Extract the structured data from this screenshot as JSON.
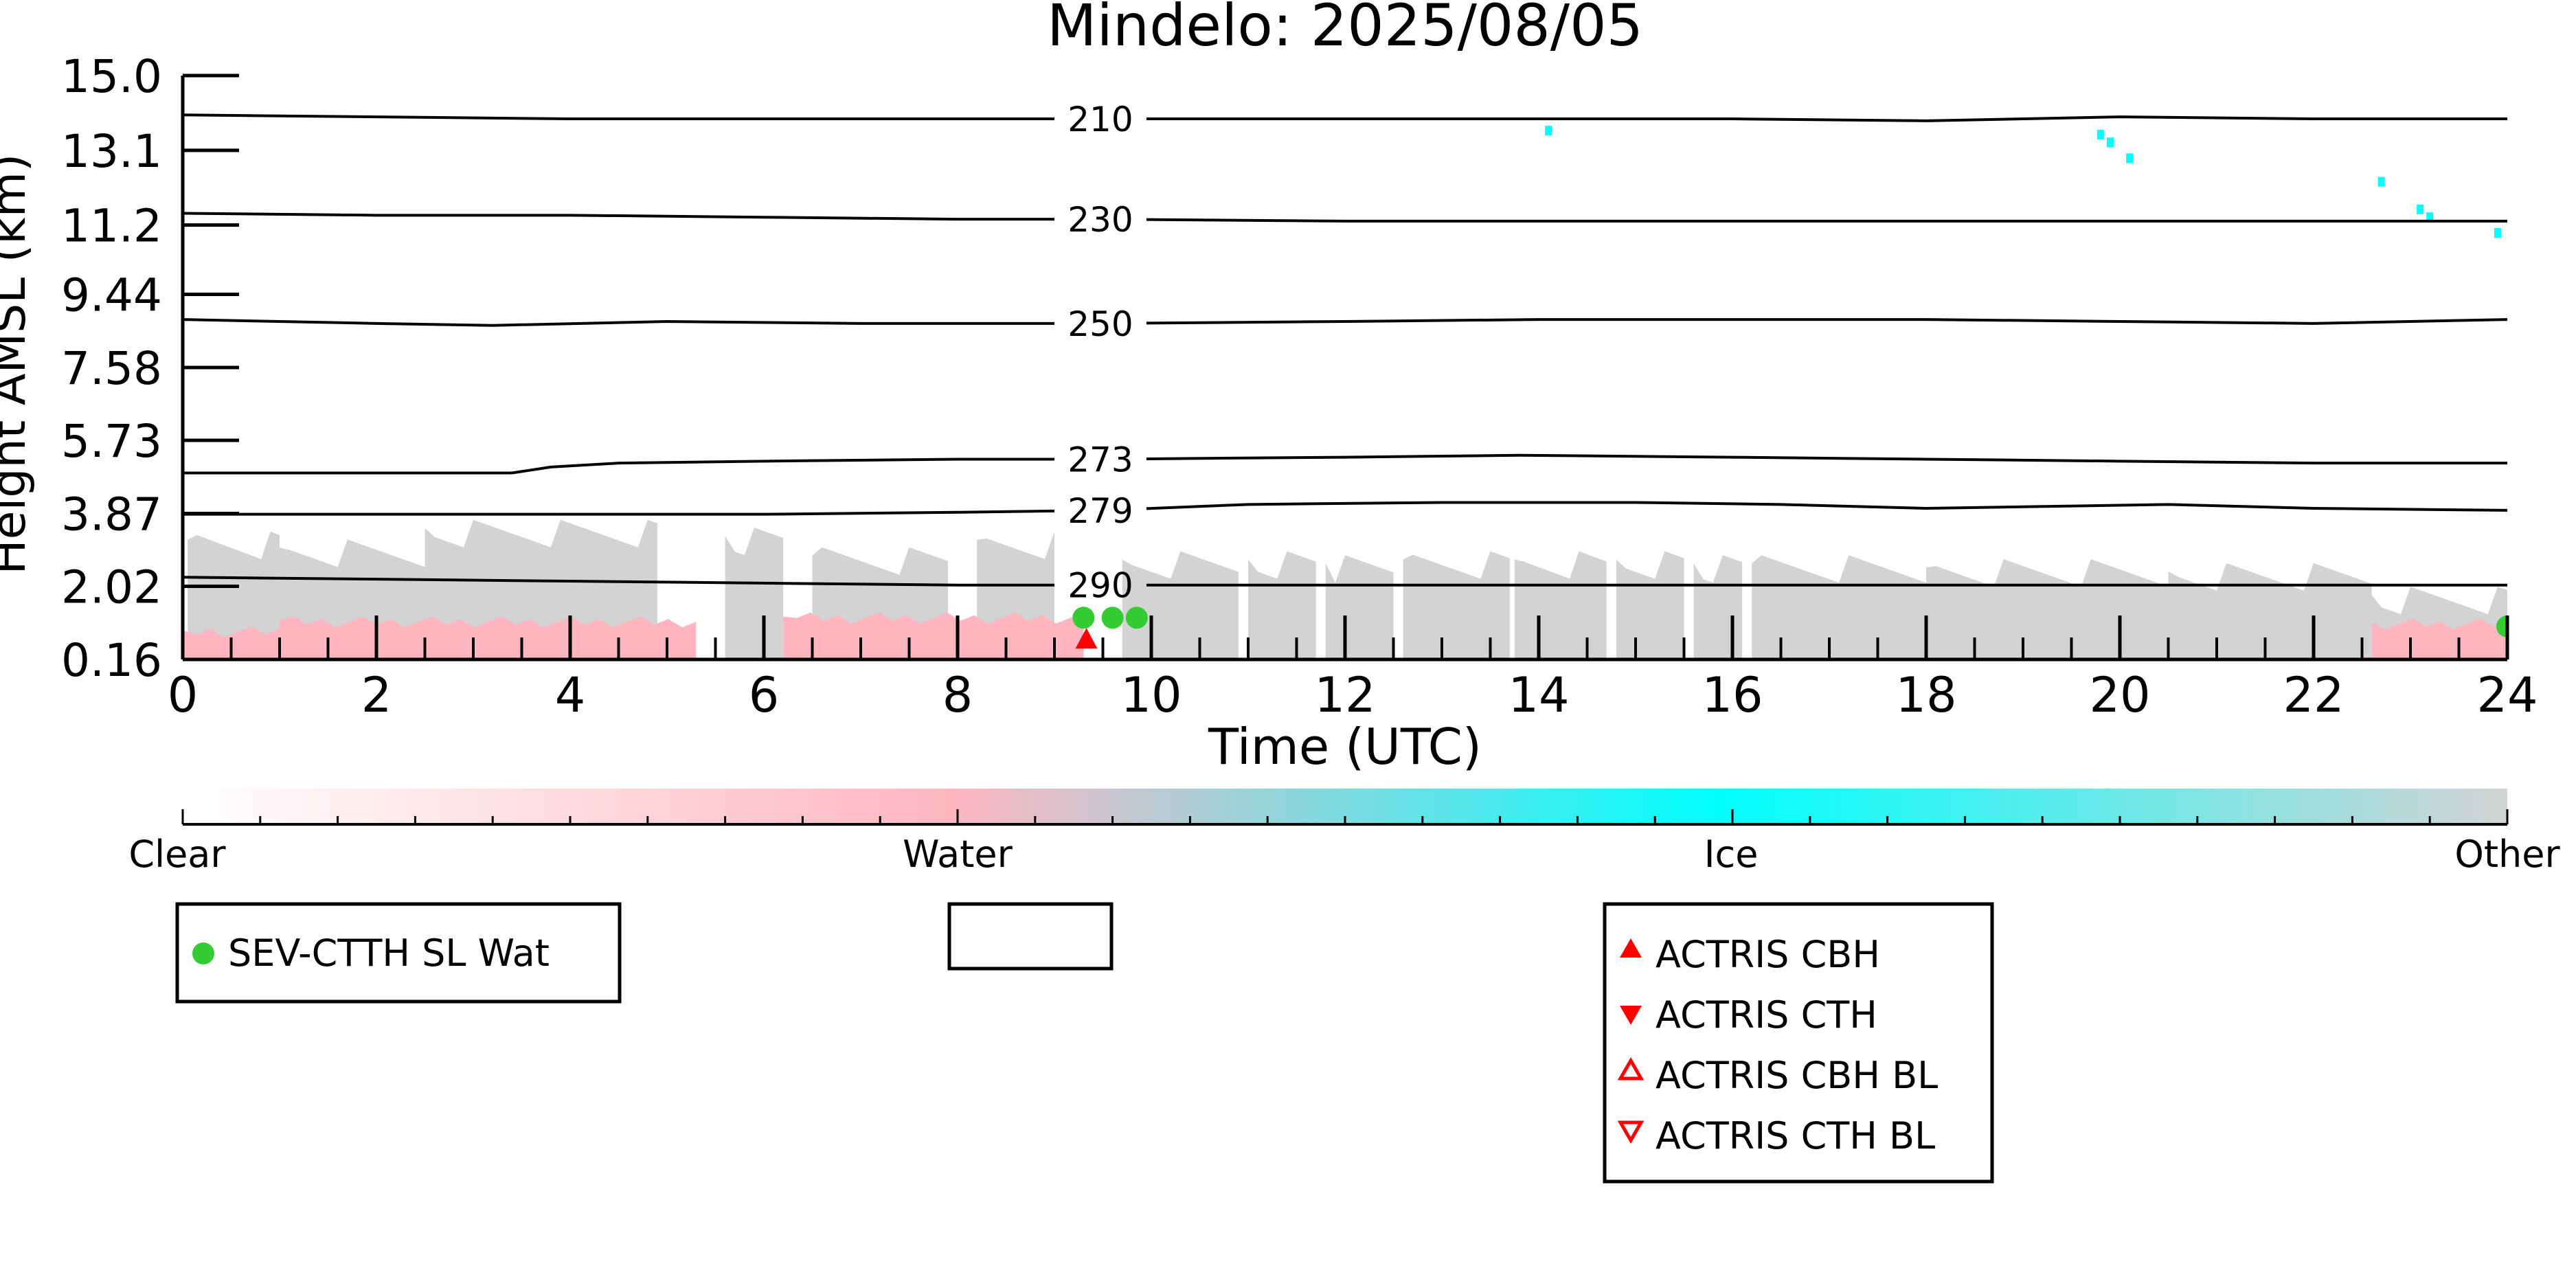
{
  "chart_data": {
    "type": "heatmap",
    "title": "Mindelo: 2025/08/05",
    "xlabel": "Time (UTC)",
    "ylabel": "Height AMSL (km)",
    "xlim": [
      0,
      24
    ],
    "ylim": [
      0.16,
      15.0
    ],
    "x_ticks": [
      "0",
      "2",
      "4",
      "6",
      "8",
      "10",
      "12",
      "14",
      "16",
      "18",
      "20",
      "22",
      "24"
    ],
    "y_ticks": [
      "15.0",
      "13.1",
      "11.2",
      "9.44",
      "7.58",
      "5.73",
      "3.87",
      "2.02",
      "0.16"
    ],
    "y_tick_values": [
      15.0,
      13.1,
      11.2,
      9.44,
      7.58,
      5.73,
      3.87,
      2.02,
      0.16
    ],
    "colorbar": {
      "labels": [
        "Clear",
        "Water",
        "Ice",
        "Other"
      ],
      "colors": [
        "#ffffff",
        "#ffb6c1",
        "#00ffff",
        "#d3d3d3"
      ]
    },
    "contours": [
      {
        "label": "210",
        "x": [
          0,
          2,
          4,
          6,
          8,
          9.5,
          12,
          14,
          16,
          18,
          20,
          22,
          24
        ],
        "y": [
          14.0,
          13.95,
          13.9,
          13.9,
          13.9,
          13.9,
          13.9,
          13.9,
          13.9,
          13.85,
          13.95,
          13.9,
          13.9
        ]
      },
      {
        "label": "230",
        "x": [
          0,
          2,
          4,
          6,
          8,
          9.5,
          12,
          14,
          16,
          18,
          20,
          22,
          24
        ],
        "y": [
          11.5,
          11.45,
          11.45,
          11.4,
          11.35,
          11.35,
          11.3,
          11.3,
          11.3,
          11.3,
          11.3,
          11.3,
          11.3
        ]
      },
      {
        "label": "250",
        "x": [
          0,
          2,
          3.2,
          5,
          7,
          9.5,
          12,
          14,
          16,
          18,
          20,
          22,
          24
        ],
        "y": [
          8.8,
          8.7,
          8.65,
          8.75,
          8.7,
          8.7,
          8.75,
          8.8,
          8.8,
          8.8,
          8.75,
          8.7,
          8.8
        ]
      },
      {
        "label": "273",
        "x": [
          0,
          2,
          3.4,
          3.8,
          4.5,
          6,
          8,
          9.5,
          12,
          13.8,
          16,
          18,
          20,
          22,
          24
        ],
        "y": [
          4.9,
          4.9,
          4.9,
          5.05,
          5.15,
          5.2,
          5.25,
          5.25,
          5.3,
          5.35,
          5.3,
          5.25,
          5.2,
          5.15,
          5.15
        ]
      },
      {
        "label": "279",
        "x": [
          0,
          2,
          4,
          6,
          8,
          9.5,
          11,
          13,
          15,
          16.5,
          18,
          20.5,
          22,
          24
        ],
        "y": [
          3.85,
          3.85,
          3.85,
          3.85,
          3.9,
          3.95,
          4.1,
          4.15,
          4.15,
          4.1,
          4.0,
          4.1,
          4.0,
          3.95
        ]
      },
      {
        "label": "290",
        "x": [
          0,
          2,
          4,
          6,
          8,
          9.5,
          12,
          14,
          16,
          18,
          20,
          22,
          24
        ],
        "y": [
          2.25,
          2.2,
          2.15,
          2.1,
          2.05,
          2.05,
          2.05,
          2.05,
          2.05,
          2.05,
          2.05,
          2.05,
          2.05
        ]
      }
    ],
    "other_blocks": [
      {
        "x0": 0.05,
        "x1": 1.0,
        "top": 3.2
      },
      {
        "x0": 1.0,
        "x1": 2.5,
        "top": 3.0
      },
      {
        "x0": 2.5,
        "x1": 4.9,
        "top": 3.5
      },
      {
        "x0": 5.6,
        "x1": 6.2,
        "top": 3.3
      },
      {
        "x0": 6.5,
        "x1": 7.9,
        "top": 2.8
      },
      {
        "x0": 8.2,
        "x1": 9.0,
        "top": 3.2
      },
      {
        "x0": 9.7,
        "x1": 10.9,
        "top": 2.7
      },
      {
        "x0": 11.0,
        "x1": 11.7,
        "top": 2.7
      },
      {
        "x0": 11.8,
        "x1": 12.5,
        "top": 2.6
      },
      {
        "x0": 12.6,
        "x1": 13.7,
        "top": 2.7
      },
      {
        "x0": 13.75,
        "x1": 14.7,
        "top": 2.7
      },
      {
        "x0": 14.8,
        "x1": 15.5,
        "top": 2.7
      },
      {
        "x0": 15.6,
        "x1": 16.1,
        "top": 2.6
      },
      {
        "x0": 16.2,
        "x1": 18.0,
        "top": 2.6
      },
      {
        "x0": 18.0,
        "x1": 20.5,
        "top": 2.5
      },
      {
        "x0": 20.5,
        "x1": 22.6,
        "top": 2.4
      },
      {
        "x0": 22.6,
        "x1": 24.0,
        "top": 1.8
      }
    ],
    "water_bands": [
      {
        "x0": 0.0,
        "x1": 1.0,
        "top": 0.9
      },
      {
        "x0": 1.0,
        "x1": 5.3,
        "top": 1.15
      },
      {
        "x0": 6.2,
        "x1": 9.3,
        "top": 1.25
      },
      {
        "x0": 22.6,
        "x1": 24.0,
        "top": 1.1
      }
    ],
    "ice_points": [
      {
        "x": 14.1,
        "y": 13.6
      },
      {
        "x": 19.8,
        "y": 13.5
      },
      {
        "x": 19.9,
        "y": 13.3
      },
      {
        "x": 20.1,
        "y": 12.9
      },
      {
        "x": 22.7,
        "y": 12.3
      },
      {
        "x": 23.1,
        "y": 11.6
      },
      {
        "x": 23.2,
        "y": 11.4
      },
      {
        "x": 23.9,
        "y": 11.0
      }
    ],
    "series": [
      {
        "name": "SEV-CTTH SL Wat",
        "marker": "circle",
        "color": "#33cc33",
        "points": [
          {
            "x": 9.3,
            "y": 1.22
          },
          {
            "x": 9.6,
            "y": 1.22
          },
          {
            "x": 9.85,
            "y": 1.22
          },
          {
            "x": 24.0,
            "y": 1.0
          }
        ]
      },
      {
        "name": "ACTRIS CBH",
        "marker": "triangle-up",
        "color": "#ff0000",
        "points": [
          {
            "x": 9.33,
            "y": 0.68
          }
        ]
      },
      {
        "name": "ACTRIS CTH",
        "marker": "triangle-down",
        "color": "#ff0000",
        "points": []
      },
      {
        "name": "ACTRIS CBH BL",
        "marker": "triangle-up-open",
        "color": "#ff0000",
        "points": []
      },
      {
        "name": "ACTRIS CTH BL",
        "marker": "triangle-down-open",
        "color": "#ff0000",
        "points": []
      }
    ]
  },
  "legend_left": [
    "SEV-CTTH SL Wat"
  ],
  "legend_right": [
    "ACTRIS CBH",
    "ACTRIS CTH",
    "ACTRIS CBH BL",
    "ACTRIS CTH BL"
  ]
}
